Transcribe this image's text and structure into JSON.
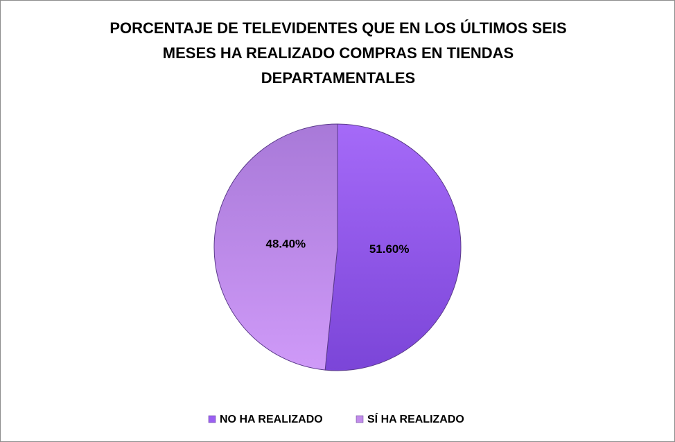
{
  "chart_data": {
    "type": "pie",
    "title": "PORCENTAJE DE TELEVIDENTES QUE EN LOS ÚLTIMOS SEIS MESES HA REALIZADO COMPRAS EN TIENDAS DEPARTAMENTALES",
    "categories": [
      "NO HA REALIZADO",
      "SÍ HA REALIZADO"
    ],
    "values": [
      51.6,
      48.4
    ],
    "value_labels": [
      "51.60%",
      "48.40%"
    ],
    "colors": [
      "#9b5ff2",
      "#c28ceb"
    ],
    "legend": "bottom"
  }
}
